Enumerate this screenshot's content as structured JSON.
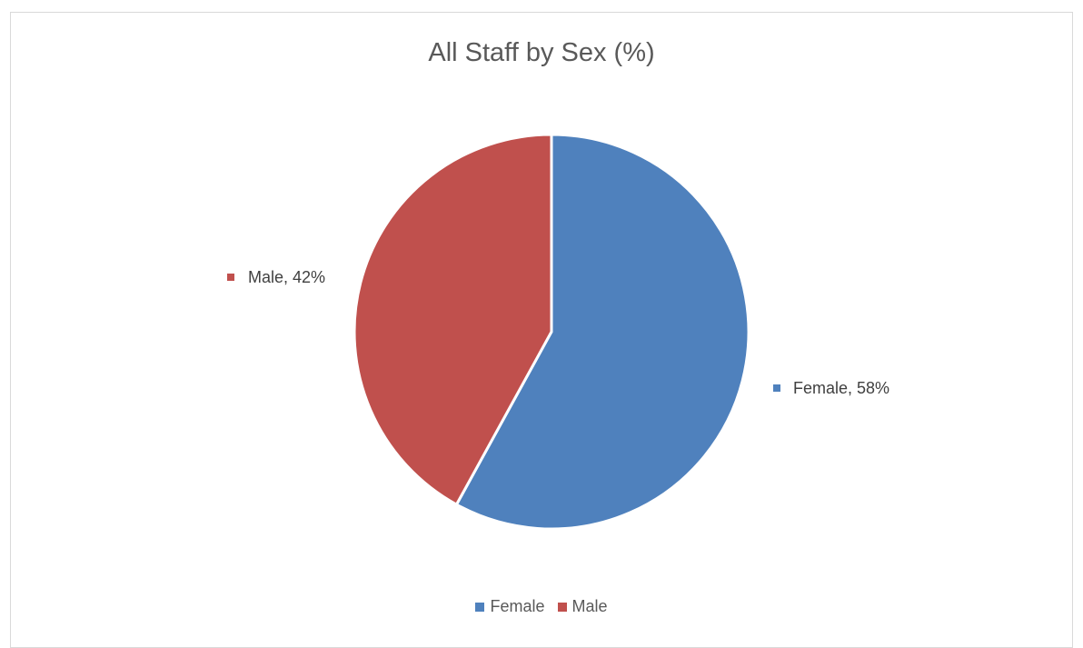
{
  "chart_data": {
    "type": "pie",
    "title": "All Staff by Sex (%)",
    "categories": [
      "Female",
      "Male"
    ],
    "values": [
      58,
      42
    ],
    "data_labels": [
      "Female, 58%",
      "Male, 42%"
    ],
    "colors": [
      "#4f81bd",
      "#c0504d"
    ],
    "legend_position": "bottom"
  }
}
